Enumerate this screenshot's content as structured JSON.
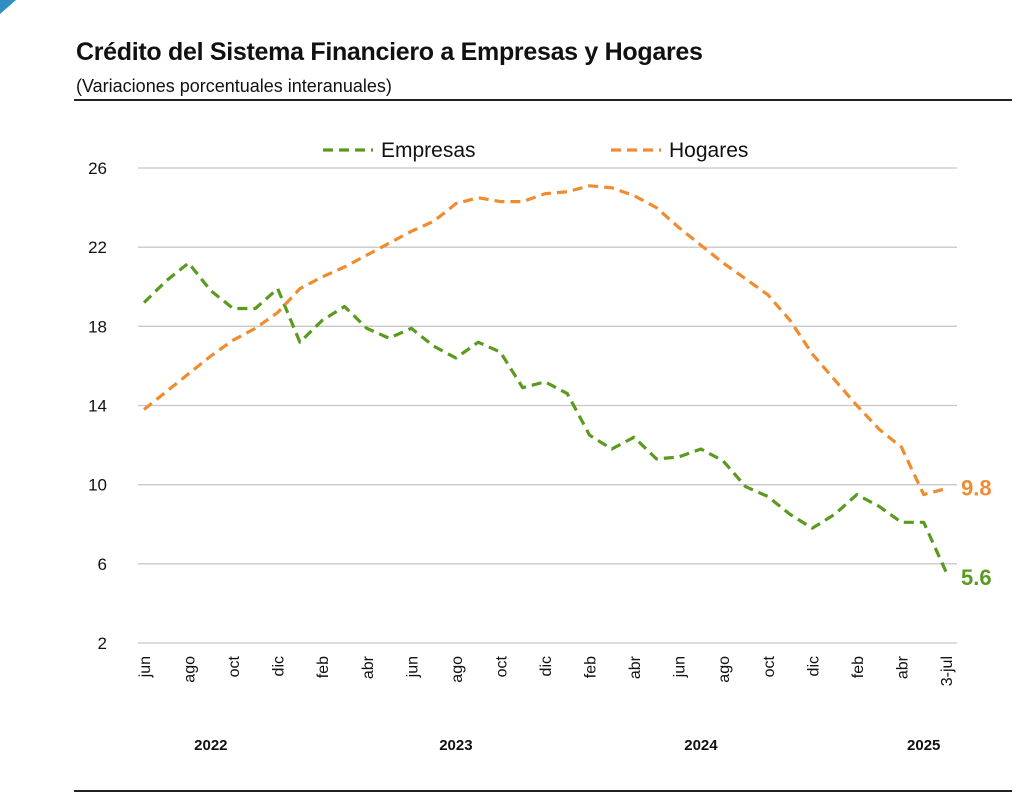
{
  "header": {
    "title": "Crédito del Sistema Financiero a Empresas y Hogares",
    "subtitle": "(Variaciones porcentuales interanuales)"
  },
  "colors": {
    "empresas": "#5a9a1f",
    "hogares": "#f08c30",
    "grid": "#c8c8c8",
    "text": "#111111"
  },
  "chart_data": {
    "type": "line",
    "title": "Crédito del Sistema Financiero a Empresas y Hogares",
    "subtitle": "(Variaciones porcentuales interanuales)",
    "ylim": [
      2,
      26
    ],
    "yticks": [
      2,
      6,
      10,
      14,
      18,
      22,
      26
    ],
    "grid": true,
    "legend_position": "top-center",
    "x_labels": [
      "jun",
      "ago",
      "oct",
      "dic",
      "feb",
      "abr",
      "jun",
      "ago",
      "oct",
      "dic",
      "feb",
      "abr",
      "jun",
      "ago",
      "oct",
      "dic",
      "feb",
      "abr",
      "3-jul"
    ],
    "years": [
      {
        "label": "2022",
        "center_index": 1.5
      },
      {
        "label": "2023",
        "center_index": 7
      },
      {
        "label": "2024",
        "center_index": 12.5
      },
      {
        "label": "2025",
        "center_index": 17.5
      }
    ],
    "series": [
      {
        "name": "Empresas",
        "color": "#5a9a1f",
        "end_label": "5.6",
        "values": [
          19.2,
          20.3,
          21.2,
          19.8,
          18.9,
          18.9,
          19.9,
          17.2,
          18.3,
          19.0,
          17.9,
          17.4,
          17.9,
          17.0,
          16.4,
          17.2,
          16.7,
          14.9,
          15.2,
          14.6,
          12.5,
          11.8,
          12.4,
          11.3,
          11.4,
          11.8,
          11.2,
          9.9,
          9.4,
          8.5,
          7.8,
          8.5,
          9.5,
          8.9,
          8.1,
          8.1,
          5.6
        ]
      },
      {
        "name": "Hogares",
        "color": "#f08c30",
        "end_label": "9.8",
        "values": [
          13.8,
          14.7,
          15.6,
          16.5,
          17.3,
          17.9,
          18.7,
          19.9,
          20.5,
          21.0,
          21.6,
          22.2,
          22.8,
          23.3,
          24.2,
          24.5,
          24.3,
          24.3,
          24.7,
          24.8,
          25.1,
          25.0,
          24.6,
          24.0,
          23.0,
          22.1,
          21.2,
          20.4,
          19.6,
          18.3,
          16.6,
          15.3,
          14.0,
          12.8,
          11.9,
          9.5,
          9.8
        ]
      }
    ]
  }
}
